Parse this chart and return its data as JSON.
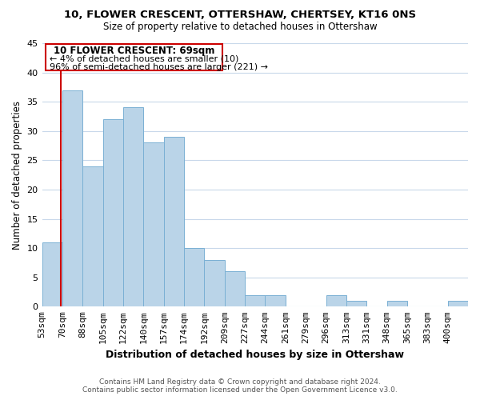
{
  "title": "10, FLOWER CRESCENT, OTTERSHAW, CHERTSEY, KT16 0NS",
  "subtitle": "Size of property relative to detached houses in Ottershaw",
  "xlabel": "Distribution of detached houses by size in Ottershaw",
  "ylabel": "Number of detached properties",
  "bin_labels": [
    "53sqm",
    "70sqm",
    "88sqm",
    "105sqm",
    "122sqm",
    "140sqm",
    "157sqm",
    "174sqm",
    "192sqm",
    "209sqm",
    "227sqm",
    "244sqm",
    "261sqm",
    "279sqm",
    "296sqm",
    "313sqm",
    "331sqm",
    "348sqm",
    "365sqm",
    "383sqm",
    "400sqm"
  ],
  "bar_heights": [
    11,
    37,
    24,
    32,
    34,
    28,
    29,
    10,
    8,
    6,
    2,
    2,
    0,
    0,
    2,
    1,
    0,
    1,
    0,
    0,
    1
  ],
  "bar_color": "#bad4e8",
  "bar_edge_color": "#7ab0d4",
  "highlight_color": "#cc0000",
  "ylim": [
    0,
    45
  ],
  "yticks": [
    0,
    5,
    10,
    15,
    20,
    25,
    30,
    35,
    40,
    45
  ],
  "annotation_title": "10 FLOWER CRESCENT: 69sqm",
  "annotation_line1": "← 4% of detached houses are smaller (10)",
  "annotation_line2": "96% of semi-detached houses are larger (221) →",
  "annotation_box_color": "#ffffff",
  "annotation_box_edge": "#cc0000",
  "footer_line1": "Contains HM Land Registry data © Crown copyright and database right 2024.",
  "footer_line2": "Contains public sector information licensed under the Open Government Licence v3.0.",
  "background_color": "#ffffff",
  "grid_color": "#c8d8ea"
}
